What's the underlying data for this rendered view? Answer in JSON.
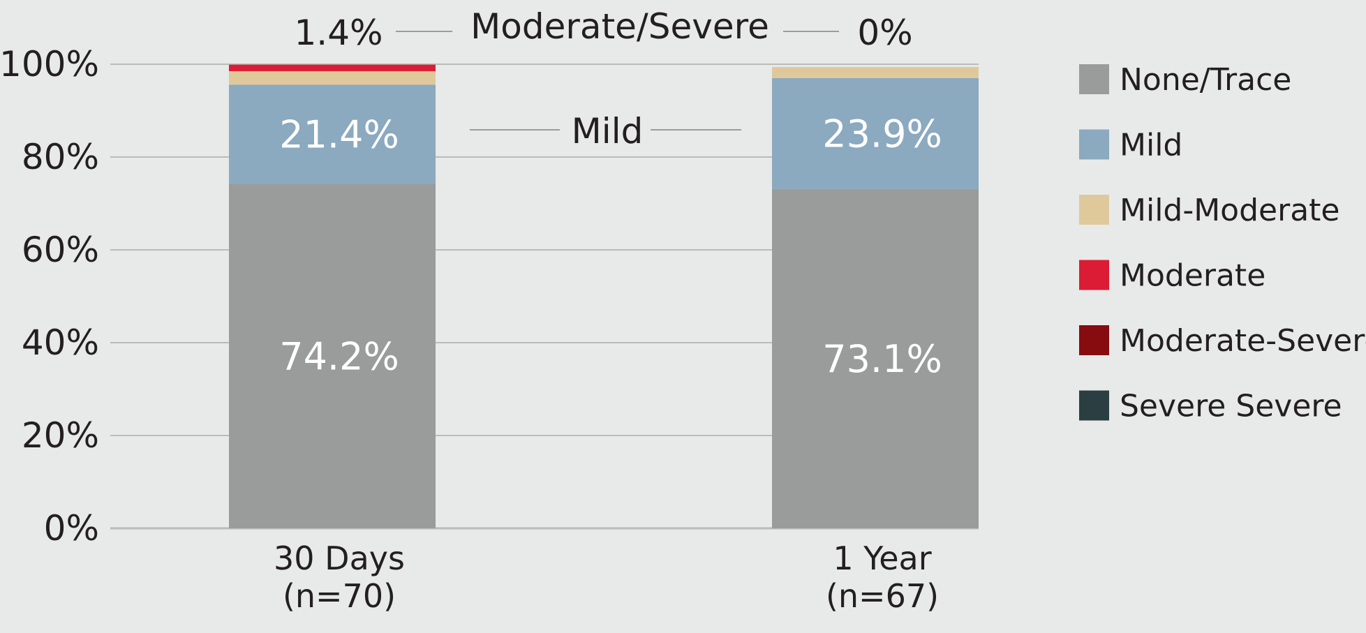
{
  "chart_data": {
    "type": "bar",
    "stacked": true,
    "categories": [
      "30 Days\n(n=70)",
      "1 Year\n(n=67)"
    ],
    "series": [
      {
        "name": "None/Trace",
        "color": "#999c9b",
        "values": [
          74.2,
          73.1
        ]
      },
      {
        "name": "Mild",
        "color": "#8ba9bf",
        "values": [
          21.4,
          23.9
        ]
      },
      {
        "name": "Mild-Moderate",
        "color": "#dfc99b",
        "values": [
          2.9,
          2.4
        ]
      },
      {
        "name": "Moderate",
        "color": "#dc1c34",
        "values": [
          1.4,
          0
        ]
      },
      {
        "name": "Moderate-Severe",
        "color": "#860c10",
        "values": [
          0,
          0
        ]
      },
      {
        "name": "Severe Severe",
        "color": "#2b3e41",
        "values": [
          0,
          0
        ]
      }
    ],
    "data_labels": [
      {
        "category": 0,
        "series": "None/Trace",
        "text": "74.2%"
      },
      {
        "category": 0,
        "series": "Mild",
        "text": "21.4%"
      },
      {
        "category": 1,
        "series": "None/Trace",
        "text": "73.1%"
      },
      {
        "category": 1,
        "series": "Mild",
        "text": "23.9%"
      }
    ],
    "annotations": [
      {
        "text": "Moderate/Severe",
        "left_value": "1.4%",
        "right_value": "0%"
      },
      {
        "text": "Mild"
      }
    ],
    "yticks": [
      "0%",
      "20%",
      "40%",
      "60%",
      "80%",
      "100%"
    ],
    "ylim": [
      0,
      100
    ],
    "grid": true,
    "legend_position": "right",
    "title": "",
    "xlabel": "",
    "ylabel": ""
  }
}
